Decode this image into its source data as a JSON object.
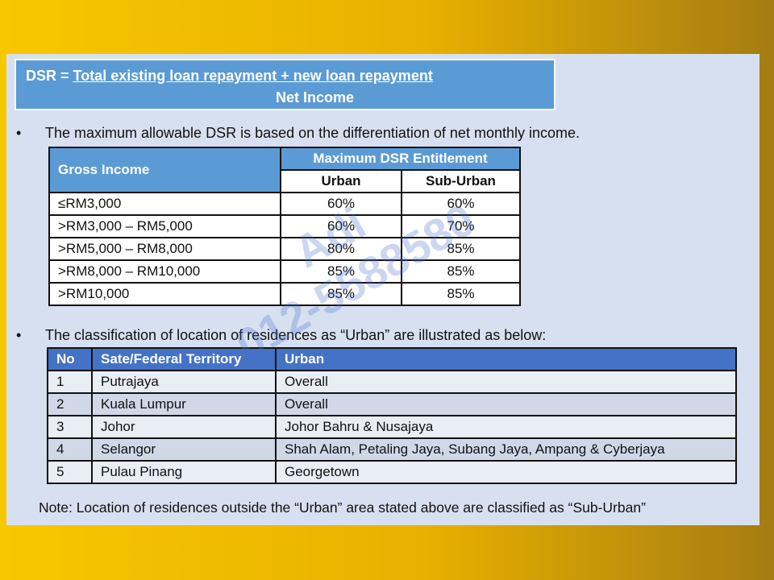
{
  "formula": {
    "label": "DSR = ",
    "numerator": "Total existing loan repayment + new loan repayment",
    "denominator": "Net Income"
  },
  "bullets": [
    "The maximum allowable DSR is based on the differentiation of net monthly income.",
    "The classification of location of residences as “Urban” are illustrated as below:"
  ],
  "dsr_table": {
    "headers": [
      "Gross Income",
      "Maximum DSR Entitlement",
      "Urban",
      "Sub-Urban"
    ],
    "rows": [
      [
        "≤RM3,000",
        "60%",
        "60%"
      ],
      [
        ">RM3,000 – RM5,000",
        "60%",
        "70%"
      ],
      [
        ">RM5,000 – RM8,000",
        "80%",
        "85%"
      ],
      [
        ">RM8,000 – RM10,000",
        "85%",
        "85%"
      ],
      [
        ">RM10,000",
        "85%",
        "85%"
      ]
    ]
  },
  "urban_table": {
    "headers": [
      "No",
      "Sate/Federal Territory",
      "Urban"
    ],
    "rows": [
      [
        "1",
        "Putrajaya",
        "Overall"
      ],
      [
        "2",
        "Kuala Lumpur",
        "Overall"
      ],
      [
        "3",
        "Johor",
        "Johor Bahru & Nusajaya"
      ],
      [
        "4",
        "Selangor",
        "Shah Alam, Petaling Jaya, Subang Jaya, Ampang & Cyberjaya"
      ],
      [
        "5",
        "Pulau Pinang",
        "Georgetown"
      ]
    ]
  },
  "note": "Note: Location of residences outside the “Urban” area stated above are classified as “Sub-Urban”",
  "watermark": [
    "Adi",
    "012-5588580"
  ]
}
